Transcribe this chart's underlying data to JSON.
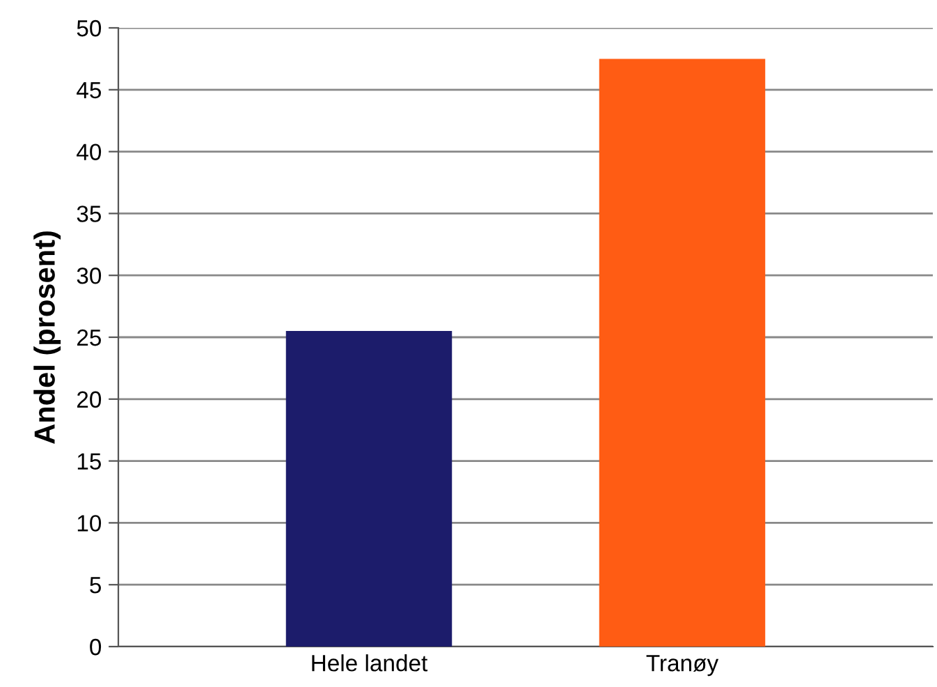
{
  "chart_data": {
    "type": "bar",
    "ylabel": "Andel (prosent)",
    "categories": [
      "Hele landet",
      "Tranøy"
    ],
    "values": [
      25.5,
      47.5
    ],
    "colors": [
      "#1c1c6b",
      "#ff5c14"
    ],
    "ylim": [
      0,
      50
    ],
    "yticks": [
      0,
      5,
      10,
      15,
      20,
      25,
      30,
      35,
      40,
      45,
      50
    ],
    "grid": "y",
    "legend": false
  }
}
